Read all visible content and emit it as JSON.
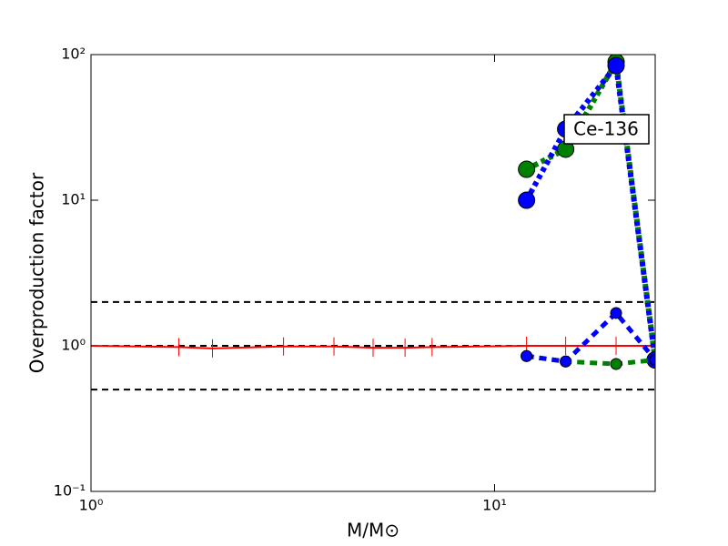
{
  "chart_data": {
    "type": "line",
    "xlabel": "M/M⊙",
    "ylabel": "Overproduction factor",
    "xscale": "log",
    "yscale": "log",
    "xlim": [
      1,
      25
    ],
    "ylim": [
      0.1,
      100
    ],
    "xticks": [
      {
        "value": 1,
        "label": "10⁰"
      },
      {
        "value": 10,
        "label": "10¹"
      }
    ],
    "yticks": [
      {
        "value": 0.1,
        "label": "10⁻¹"
      },
      {
        "value": 1,
        "label": "10⁰"
      },
      {
        "value": 10,
        "label": "10¹"
      },
      {
        "value": 100,
        "label": "10²"
      }
    ],
    "hlines": [
      0.5,
      1,
      2
    ],
    "annotation": "Ce-136",
    "series": [
      {
        "color": "#ff0000",
        "linestyle": "solid",
        "marker": "vline",
        "x": [
          1,
          1.65,
          2,
          3,
          4,
          5,
          6,
          7,
          12,
          15,
          20,
          25
        ],
        "values": [
          1,
          0.98,
          0.96,
          0.99,
          0.99,
          0.97,
          0.97,
          0.98,
          1,
          1,
          1,
          1
        ]
      },
      {
        "color": "#008000",
        "linestyle": "dotted",
        "marker": "large",
        "x": [
          12,
          15,
          20,
          25
        ],
        "values": [
          16.3,
          22.4,
          89,
          0.8
        ]
      },
      {
        "color": "#0000ff",
        "linestyle": "dotted",
        "marker": "large",
        "x": [
          12,
          15,
          20,
          25
        ],
        "values": [
          10,
          30.8,
          84,
          0.8
        ]
      },
      {
        "color": "#008000",
        "linestyle": "dashed",
        "marker": "small",
        "x": [
          12,
          15,
          20,
          25
        ],
        "values": [
          0.85,
          0.78,
          0.75,
          0.8
        ]
      },
      {
        "color": "#0000ff",
        "linestyle": "dashed",
        "marker": "small",
        "x": [
          12,
          15,
          20,
          25
        ],
        "values": [
          0.85,
          0.78,
          1.68,
          0.8
        ]
      }
    ]
  }
}
